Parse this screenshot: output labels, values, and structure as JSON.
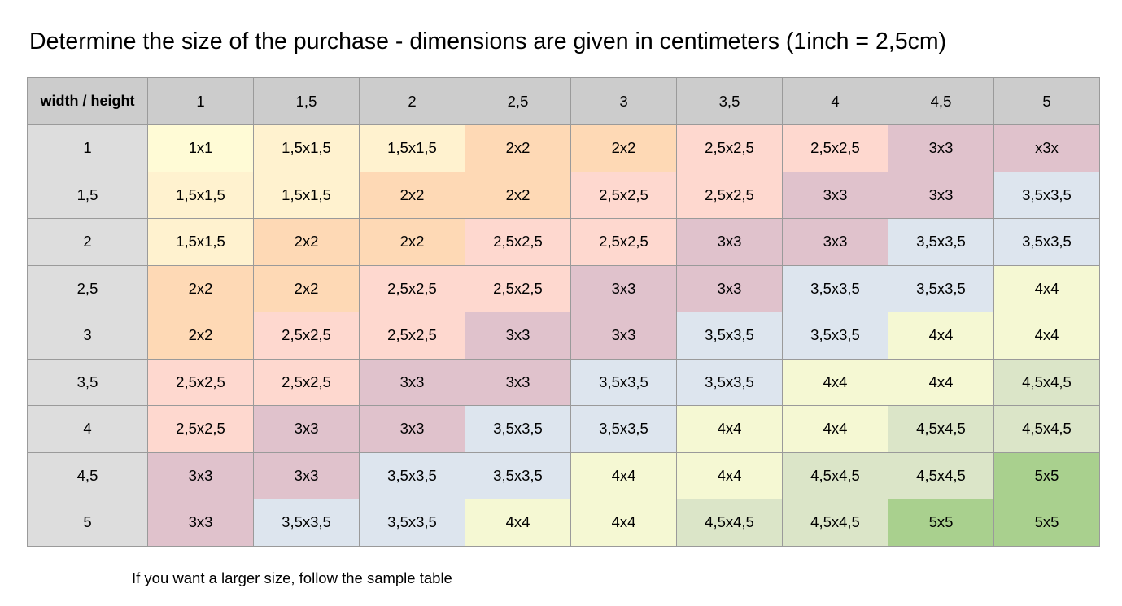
{
  "title": "Determine the size of the purchase - dimensions are given in centimeters (1inch = 2,5cm)",
  "table": {
    "corner_label": "width / height",
    "columns": [
      "1",
      "1,5",
      "2",
      "2,5",
      "3",
      "3,5",
      "4",
      "4,5",
      "5"
    ],
    "rows": [
      {
        "label": "1",
        "cells": [
          "1x1",
          "1,5x1,5",
          "1,5x1,5",
          "2x2",
          "2x2",
          "2,5x2,5",
          "2,5x2,5",
          "3x3",
          "x3x"
        ]
      },
      {
        "label": "1,5",
        "cells": [
          "1,5x1,5",
          "1,5x1,5",
          "2x2",
          "2x2",
          "2,5x2,5",
          "2,5x2,5",
          "3x3",
          "3x3",
          "3,5x3,5"
        ]
      },
      {
        "label": "2",
        "cells": [
          "1,5x1,5",
          "2x2",
          "2x2",
          "2,5x2,5",
          "2,5x2,5",
          "3x3",
          "3x3",
          "3,5x3,5",
          "3,5x3,5"
        ]
      },
      {
        "label": "2,5",
        "cells": [
          "2x2",
          "2x2",
          "2,5x2,5",
          "2,5x2,5",
          "3x3",
          "3x3",
          "3,5x3,5",
          "3,5x3,5",
          "4x4"
        ]
      },
      {
        "label": "3",
        "cells": [
          "2x2",
          "2,5x2,5",
          "2,5x2,5",
          "3x3",
          "3x3",
          "3,5x3,5",
          "3,5x3,5",
          "4x4",
          "4x4"
        ]
      },
      {
        "label": "3,5",
        "cells": [
          "2,5x2,5",
          "2,5x2,5",
          "3x3",
          "3x3",
          "3,5x3,5",
          "3,5x3,5",
          "4x4",
          "4x4",
          "4,5x4,5"
        ]
      },
      {
        "label": "4",
        "cells": [
          "2,5x2,5",
          "3x3",
          "3x3",
          "3,5x3,5",
          "3,5x3,5",
          "4x4",
          "4x4",
          "4,5x4,5",
          "4,5x4,5"
        ]
      },
      {
        "label": "4,5",
        "cells": [
          "3x3",
          "3x3",
          "3,5x3,5",
          "3,5x3,5",
          "4x4",
          "4x4",
          "4,5x4,5",
          "4,5x4,5",
          "5x5"
        ]
      },
      {
        "label": "5",
        "cells": [
          "3x3",
          "3,5x3,5",
          "3,5x3,5",
          "4x4",
          "4x4",
          "4,5x4,5",
          "4,5x4,5",
          "5x5",
          "5x5"
        ]
      }
    ],
    "size_colors": {
      "1x1": "#fffbd6",
      "1,5x1,5": "#fff2cf",
      "2x2": "#fed9b5",
      "2,5x2,5": "#fed8cf",
      "3x3": "#e0c2cc",
      "x3x": "#e0c2cc",
      "3,5x3,5": "#dde5ee",
      "4x4": "#f5f8d3",
      "4,5x4,5": "#dbe5c8",
      "5x5": "#a9d08e"
    },
    "header_bg": "#cccccc",
    "row_header_bg": "#dddddd"
  },
  "footnote": "If you want a larger size, follow the sample table"
}
